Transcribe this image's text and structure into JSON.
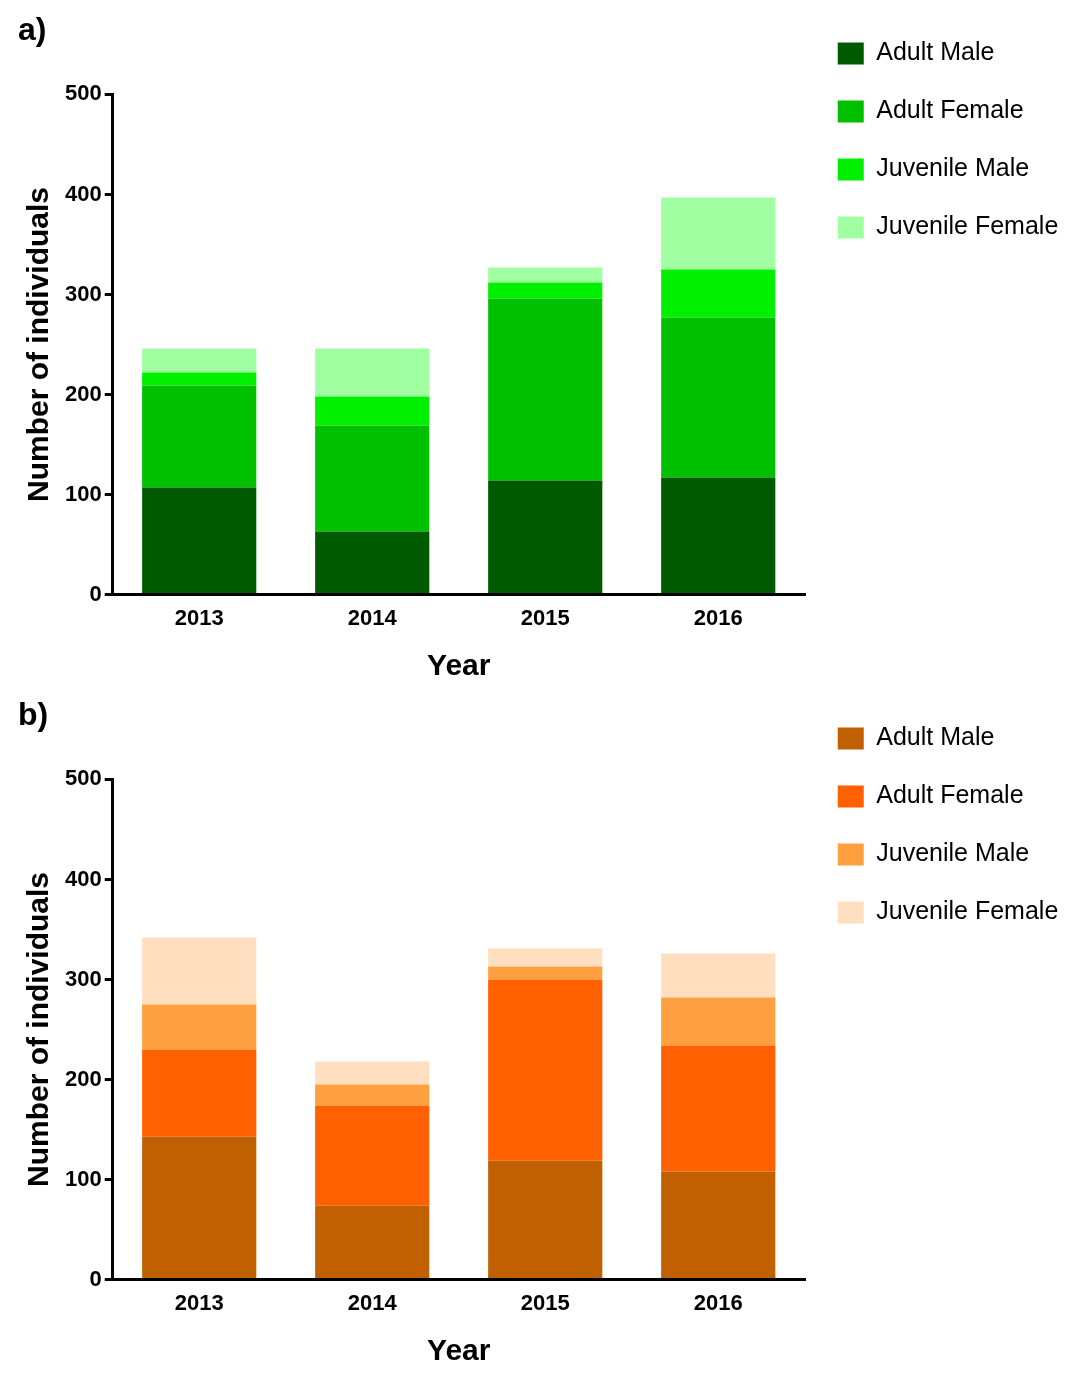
{
  "chart_data": [
    {
      "type": "bar",
      "title": "a)",
      "xlabel": "Year",
      "ylabel": "Number of individuals",
      "categories": [
        "2013",
        "2014",
        "2015",
        "2016"
      ],
      "stacked": true,
      "ylim": [
        0,
        500
      ],
      "yticks": [
        0,
        100,
        200,
        300,
        400,
        500
      ],
      "grid": false,
      "legend": "top right",
      "series": [
        {
          "name": "Adult Male",
          "color": "#005a00",
          "values": [
            107,
            63,
            114,
            117
          ]
        },
        {
          "name": "Adult Female",
          "color": "#00c000",
          "values": [
            102,
            106,
            182,
            160
          ]
        },
        {
          "name": "Juvenile Male",
          "color": "#00f000",
          "values": [
            13,
            29,
            16,
            48
          ]
        },
        {
          "name": "Juvenile Female",
          "color": "#a0ffa0",
          "values": [
            24,
            48,
            15,
            72
          ]
        }
      ]
    },
    {
      "type": "bar",
      "title": "b)",
      "xlabel": "Year",
      "ylabel": "Number of individuals",
      "categories": [
        "2013",
        "2014",
        "2015",
        "2016"
      ],
      "stacked": true,
      "ylim": [
        0,
        500
      ],
      "yticks": [
        0,
        100,
        200,
        300,
        400,
        500
      ],
      "grid": false,
      "legend": "top right",
      "series": [
        {
          "name": "Adult Male",
          "color": "#c06000",
          "values": [
            143,
            74,
            119,
            108
          ]
        },
        {
          "name": "Adult Female",
          "color": "#ff6000",
          "values": [
            87,
            100,
            181,
            126
          ]
        },
        {
          "name": "Juvenile Male",
          "color": "#ffa040",
          "values": [
            45,
            21,
            13,
            48
          ]
        },
        {
          "name": "Juvenile Female",
          "color": "#ffdfc0",
          "values": [
            67,
            23,
            18,
            44
          ]
        }
      ]
    }
  ]
}
